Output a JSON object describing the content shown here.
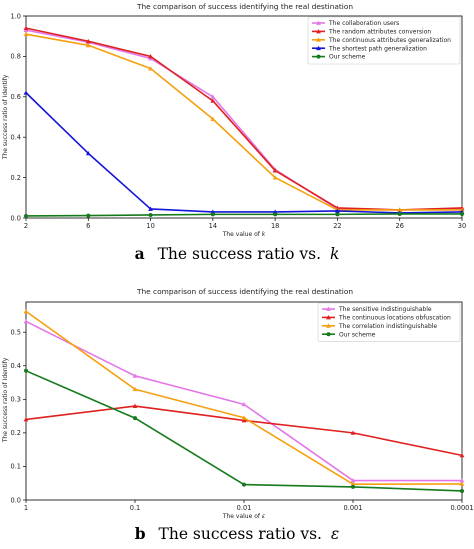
{
  "chart_data": [
    {
      "type": "line",
      "title": "The comparison of success identifying the real destination",
      "xlabel": "The value of k",
      "ylabel": "The success ratio of Identify",
      "x": [
        2,
        6,
        10,
        14,
        18,
        22,
        26,
        30
      ],
      "xticks": [
        "2",
        "6",
        "10",
        "14",
        "18",
        "22",
        "26",
        "30"
      ],
      "yticks": [
        "0.0",
        "0.2",
        "0.4",
        "0.6",
        "0.8",
        "1.0"
      ],
      "xlim": [
        2,
        30
      ],
      "ylim": [
        0,
        1.0
      ],
      "grid": false,
      "legend_position": "top-right",
      "caption": {
        "letter": "a",
        "text": "The success ratio vs.",
        "symbol": "k"
      },
      "series": [
        {
          "name": "The collaboration users",
          "color": "#e377e8",
          "marker": "triangle",
          "values": [
            0.93,
            0.87,
            0.79,
            0.6,
            0.24,
            0.045,
            0.04,
            0.045
          ]
        },
        {
          "name": "The random attributes conversion",
          "color": "#e02020",
          "marker": "triangle",
          "values": [
            0.94,
            0.875,
            0.8,
            0.58,
            0.235,
            0.05,
            0.04,
            0.05
          ]
        },
        {
          "name": "The continuous attributes generalization",
          "color": "#f5a00f",
          "marker": "triangle",
          "values": [
            0.91,
            0.855,
            0.74,
            0.49,
            0.2,
            0.04,
            0.04,
            0.04
          ]
        },
        {
          "name": "The shortest path generalization",
          "color": "#1515d9",
          "marker": "triangle",
          "values": [
            0.62,
            0.32,
            0.045,
            0.03,
            0.03,
            0.035,
            0.025,
            0.03
          ]
        },
        {
          "name": "Our scheme",
          "color": "#157a1c",
          "marker": "circle",
          "values": [
            0.01,
            0.012,
            0.015,
            0.018,
            0.018,
            0.018,
            0.02,
            0.02
          ]
        }
      ]
    },
    {
      "type": "line",
      "title": "The comparison of success identifying the real destination",
      "xlabel": "The value of ε",
      "ylabel": "The success ratio of Identify",
      "x": [
        1,
        0.1,
        0.01,
        0.001,
        0.0001
      ],
      "xticks": [
        "1",
        "0.1",
        "0.01",
        "0.001",
        "0.0001"
      ],
      "yticks": [
        "0.0",
        "0.1",
        "0.2",
        "0.3",
        "0.4",
        "0.5"
      ],
      "xlim": [
        1,
        0.0001
      ],
      "xscale": "log",
      "ylim": [
        0,
        0.59
      ],
      "grid": false,
      "legend_position": "top-right",
      "caption": {
        "letter": "b",
        "text": "The success ratio vs.",
        "symbol": "ε"
      },
      "series": [
        {
          "name": "The sensitive indistinguishable",
          "color": "#e377e8",
          "marker": "triangle",
          "x": [
            1,
            0.1,
            0.01,
            0.001,
            0.0001
          ],
          "values": [
            0.532,
            0.37,
            0.285,
            0.058,
            0.058
          ]
        },
        {
          "name": "The continuous locations obfuscation",
          "color": "#e02020",
          "marker": "triangle",
          "x": [
            1,
            0.1,
            0.01,
            0.001,
            0.0001
          ],
          "values": [
            0.24,
            0.28,
            0.237,
            0.2,
            0.133
          ]
        },
        {
          "name": "The correlation indistinguishable",
          "color": "#f5a00f",
          "marker": "triangle",
          "x": [
            1,
            0.1,
            0.01,
            0.001,
            0.0001
          ],
          "values": [
            0.562,
            0.33,
            0.245,
            0.047,
            0.048
          ]
        },
        {
          "name": "Our scheme",
          "color": "#157a1c",
          "marker": "circle",
          "x": [
            1,
            0.1,
            0.01,
            0.001,
            0.0001
          ],
          "values": [
            0.385,
            0.244,
            0.046,
            0.039,
            0.027
          ]
        }
      ]
    }
  ]
}
